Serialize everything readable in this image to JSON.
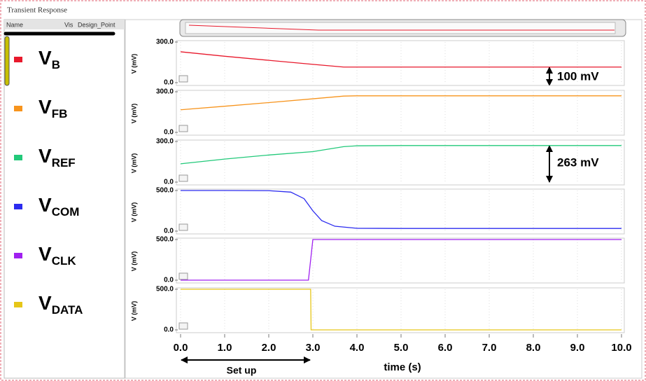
{
  "window_title": "Transient Response",
  "columns": [
    "Name",
    "Vis",
    "Design_Point"
  ],
  "x_axis": {
    "label": "time (s)",
    "xlim": [
      0,
      10
    ],
    "xticks": [
      {
        "value": 0,
        "label": "0.0"
      },
      {
        "value": 1,
        "label": "1.0"
      },
      {
        "value": 2,
        "label": "2.0"
      },
      {
        "value": 3,
        "label": "3.0"
      },
      {
        "value": 4,
        "label": "4.0"
      },
      {
        "value": 5,
        "label": "5.0"
      },
      {
        "value": 6,
        "label": "6.0"
      },
      {
        "value": 7,
        "label": "7.0"
      },
      {
        "value": 8,
        "label": "8.0"
      },
      {
        "value": 9,
        "label": "9.0"
      },
      {
        "value": 10,
        "label": "10.0"
      }
    ]
  },
  "chart_data": [
    {
      "type": "line",
      "ylabel": "V (mV)",
      "ylim": [
        0,
        300
      ],
      "yticks": [
        {
          "value": 0,
          "label": "0.0"
        },
        {
          "value": 300,
          "label": "300.0"
        }
      ],
      "x": [
        0,
        1,
        2,
        3,
        3.7,
        4,
        5,
        6,
        7,
        8,
        9,
        10
      ],
      "series": [
        {
          "name": "V",
          "subscript": "B",
          "color": "#e8192c",
          "values": [
            228,
            195,
            165,
            135,
            115,
            115,
            115,
            115,
            115,
            115,
            115,
            115
          ]
        }
      ]
    },
    {
      "type": "line",
      "ylabel": "V (mV)",
      "ylim": [
        0,
        300
      ],
      "yticks": [
        {
          "value": 0,
          "label": "0.0"
        },
        {
          "value": 300,
          "label": "300.0"
        }
      ],
      "x": [
        0,
        1,
        2,
        3,
        3.7,
        4,
        5,
        6,
        7,
        8,
        9,
        10
      ],
      "series": [
        {
          "name": "V",
          "subscript": "FB",
          "color": "#f7941d",
          "values": [
            167,
            193,
            220,
            248,
            268,
            270,
            270,
            270,
            270,
            270,
            270,
            270
          ]
        }
      ]
    },
    {
      "type": "line",
      "ylabel": "V (mV)",
      "ylim": [
        0,
        300
      ],
      "yticks": [
        {
          "value": 0,
          "label": "0.0"
        },
        {
          "value": 300,
          "label": "300.0"
        }
      ],
      "x": [
        0,
        1,
        2,
        3,
        3.7,
        4,
        5,
        6,
        7,
        8,
        9,
        10
      ],
      "series": [
        {
          "name": "V",
          "subscript": "REF",
          "color": "#22c97a",
          "values": [
            135,
            170,
            200,
            225,
            262,
            268,
            270,
            270,
            270,
            270,
            270,
            270
          ]
        }
      ]
    },
    {
      "type": "line",
      "ylabel": "V (mV)",
      "ylim": [
        0,
        500
      ],
      "yticks": [
        {
          "value": 0,
          "label": "0.0"
        },
        {
          "value": 500,
          "label": "500.0"
        }
      ],
      "x": [
        0,
        1,
        2,
        2.5,
        2.8,
        3,
        3.2,
        3.5,
        4,
        5,
        6,
        7,
        8,
        9,
        10
      ],
      "series": [
        {
          "name": "V",
          "subscript": "COM",
          "color": "#2b2bef",
          "values": [
            500,
            500,
            498,
            480,
            400,
            250,
            130,
            60,
            35,
            33,
            33,
            33,
            33,
            33,
            33
          ]
        }
      ]
    },
    {
      "type": "line",
      "ylabel": "V (mV)",
      "ylim": [
        0,
        500
      ],
      "yticks": [
        {
          "value": 0,
          "label": "0.0"
        },
        {
          "value": 500,
          "label": "500.0"
        }
      ],
      "x": [
        0,
        1,
        2,
        2.9,
        3.0,
        4,
        5,
        6,
        7,
        8,
        9,
        10
      ],
      "series": [
        {
          "name": "V",
          "subscript": "CLK",
          "color": "#a020f0",
          "values": [
            0,
            0,
            0,
            0,
            500,
            500,
            500,
            500,
            500,
            500,
            500,
            500
          ]
        }
      ]
    },
    {
      "type": "line",
      "ylabel": "V (mV)",
      "ylim": [
        0,
        500
      ],
      "yticks": [
        {
          "value": 0,
          "label": "0.0"
        },
        {
          "value": 500,
          "label": "500.0"
        }
      ],
      "x": [
        0,
        1,
        2,
        2.95,
        2.96,
        4,
        5,
        6,
        7,
        8,
        9,
        10
      ],
      "series": [
        {
          "name": "V",
          "subscript": "DATA",
          "color": "#e6c619",
          "values": [
            500,
            500,
            500,
            500,
            0,
            0,
            0,
            0,
            0,
            0,
            0,
            0
          ]
        }
      ]
    }
  ],
  "annotations": [
    "100 mV",
    "263 mV",
    "Set up"
  ]
}
